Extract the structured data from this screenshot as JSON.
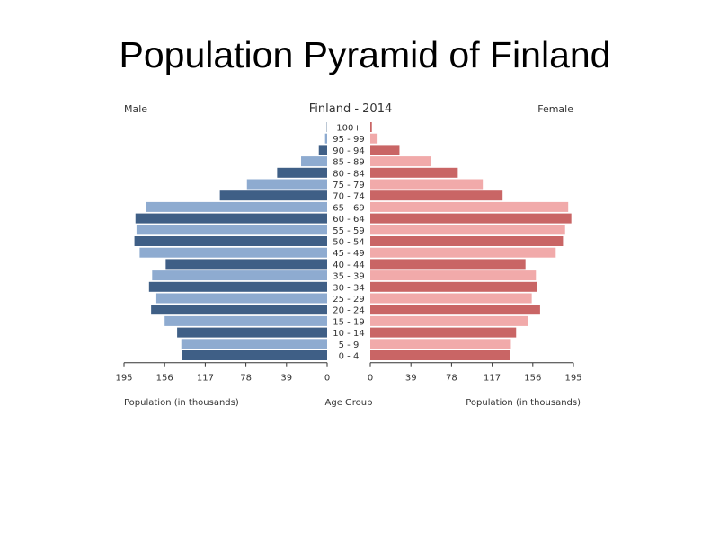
{
  "slide": {
    "title": "Population Pyramid of Finland"
  },
  "chart_data": {
    "type": "bar",
    "title": "Finland - 2014",
    "left_label": "Male",
    "right_label": "Female",
    "xlabel_left": "Population (in thousands)",
    "xlabel_center": "Age Group",
    "xlabel_right": "Population (in thousands)",
    "xlim": [
      0,
      195
    ],
    "ticks": [
      195,
      156,
      117,
      78,
      39,
      0
    ],
    "ticks_right": [
      0,
      39,
      78,
      117,
      156,
      195
    ],
    "categories": [
      "100+",
      "95 - 99",
      "90 - 94",
      "85 - 89",
      "80 - 84",
      "75 - 79",
      "70 - 74",
      "65 - 69",
      "60 - 64",
      "55 - 59",
      "50 - 54",
      "45 - 49",
      "40 - 44",
      "35 - 39",
      "30 - 34",
      "25 - 29",
      "20 - 24",
      "15 - 19",
      "10 - 14",
      "5 - 9",
      "0 - 4"
    ],
    "series": [
      {
        "name": "Male",
        "values": [
          0.3,
          2,
          8,
          25,
          48,
          77,
          103,
          174,
          184,
          183,
          185,
          180,
          155,
          168,
          171,
          164,
          169,
          156,
          144,
          140,
          139
        ]
      },
      {
        "name": "Female",
        "values": [
          1.5,
          7,
          28,
          58,
          84,
          108,
          127,
          190,
          193,
          187,
          185,
          178,
          149,
          159,
          160,
          155,
          163,
          151,
          140,
          135,
          134
        ]
      }
    ],
    "colors": {
      "male_dark": "#3f5f86",
      "male_light": "#8eabd0",
      "female_dark": "#c96565",
      "female_light": "#f1aaaa"
    }
  }
}
